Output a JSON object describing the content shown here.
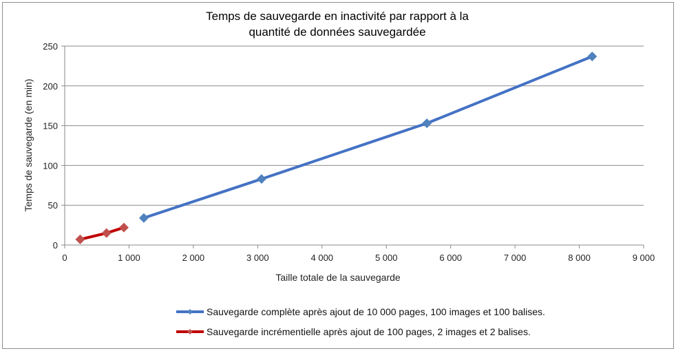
{
  "chart_data": {
    "type": "line",
    "title_line1": "Temps de sauvegarde en inactivité par rapport à la",
    "title_line2": "quantité de données sauvegardée",
    "xlabel": "Taille totale de la sauvegarde",
    "ylabel": "Temps de sauvegarde (en min)",
    "xlim": [
      0,
      9000
    ],
    "ylim": [
      0,
      250
    ],
    "x_ticks": [
      "0",
      "1 000",
      "2 000",
      "3 000",
      "4 000",
      "5 000",
      "6 000",
      "7 000",
      "8 000",
      "9 000"
    ],
    "y_ticks": [
      "0",
      "50",
      "100",
      "150",
      "200",
      "250"
    ],
    "grid": true,
    "legend_position": "bottom",
    "series": [
      {
        "name": "Sauvegarde complète après ajout de 10 000 pages, 100 images et 100 balises.",
        "line_color": "#4472c4",
        "marker_color": "#4f81bd",
        "x": [
          1230,
          3060,
          5630,
          8200
        ],
        "y": [
          34,
          83,
          153,
          237
        ]
      },
      {
        "name": "Sauvegarde incrémentielle après ajout de 100 pages, 2 images et 2 balises.",
        "line_color": "#c00000",
        "marker_color": "#c0504d",
        "x": [
          240,
          650,
          920
        ],
        "y": [
          7,
          15,
          22
        ]
      }
    ]
  }
}
